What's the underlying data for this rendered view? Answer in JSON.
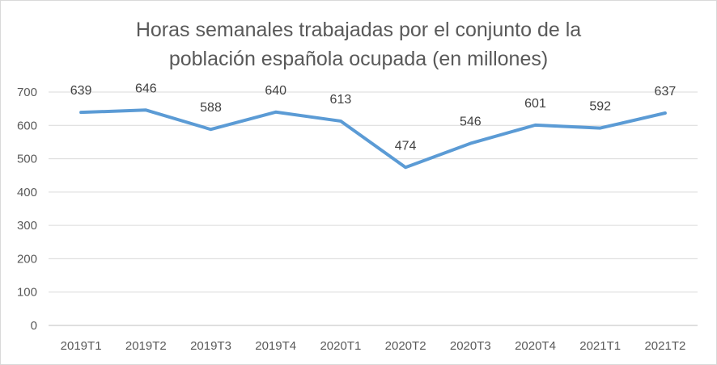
{
  "chart_data": {
    "type": "line",
    "title_lines": [
      "Horas semanales trabajadas por el conjunto de la",
      "población española ocupada (en millones)"
    ],
    "categories": [
      "2019T1",
      "2019T2",
      "2019T3",
      "2019T4",
      "2020T1",
      "2020T2",
      "2020T3",
      "2020T4",
      "2021T1",
      "2021T2"
    ],
    "series": [
      {
        "values": [
          639,
          646,
          588,
          640,
          613,
          474,
          546,
          601,
          592,
          637
        ],
        "color": "#5b9bd5"
      }
    ],
    "y_ticks": [
      "0",
      "100",
      "200",
      "300",
      "400",
      "500",
      "600",
      "700"
    ],
    "ylim": [
      0,
      700
    ],
    "grid": true,
    "legend": "none"
  }
}
